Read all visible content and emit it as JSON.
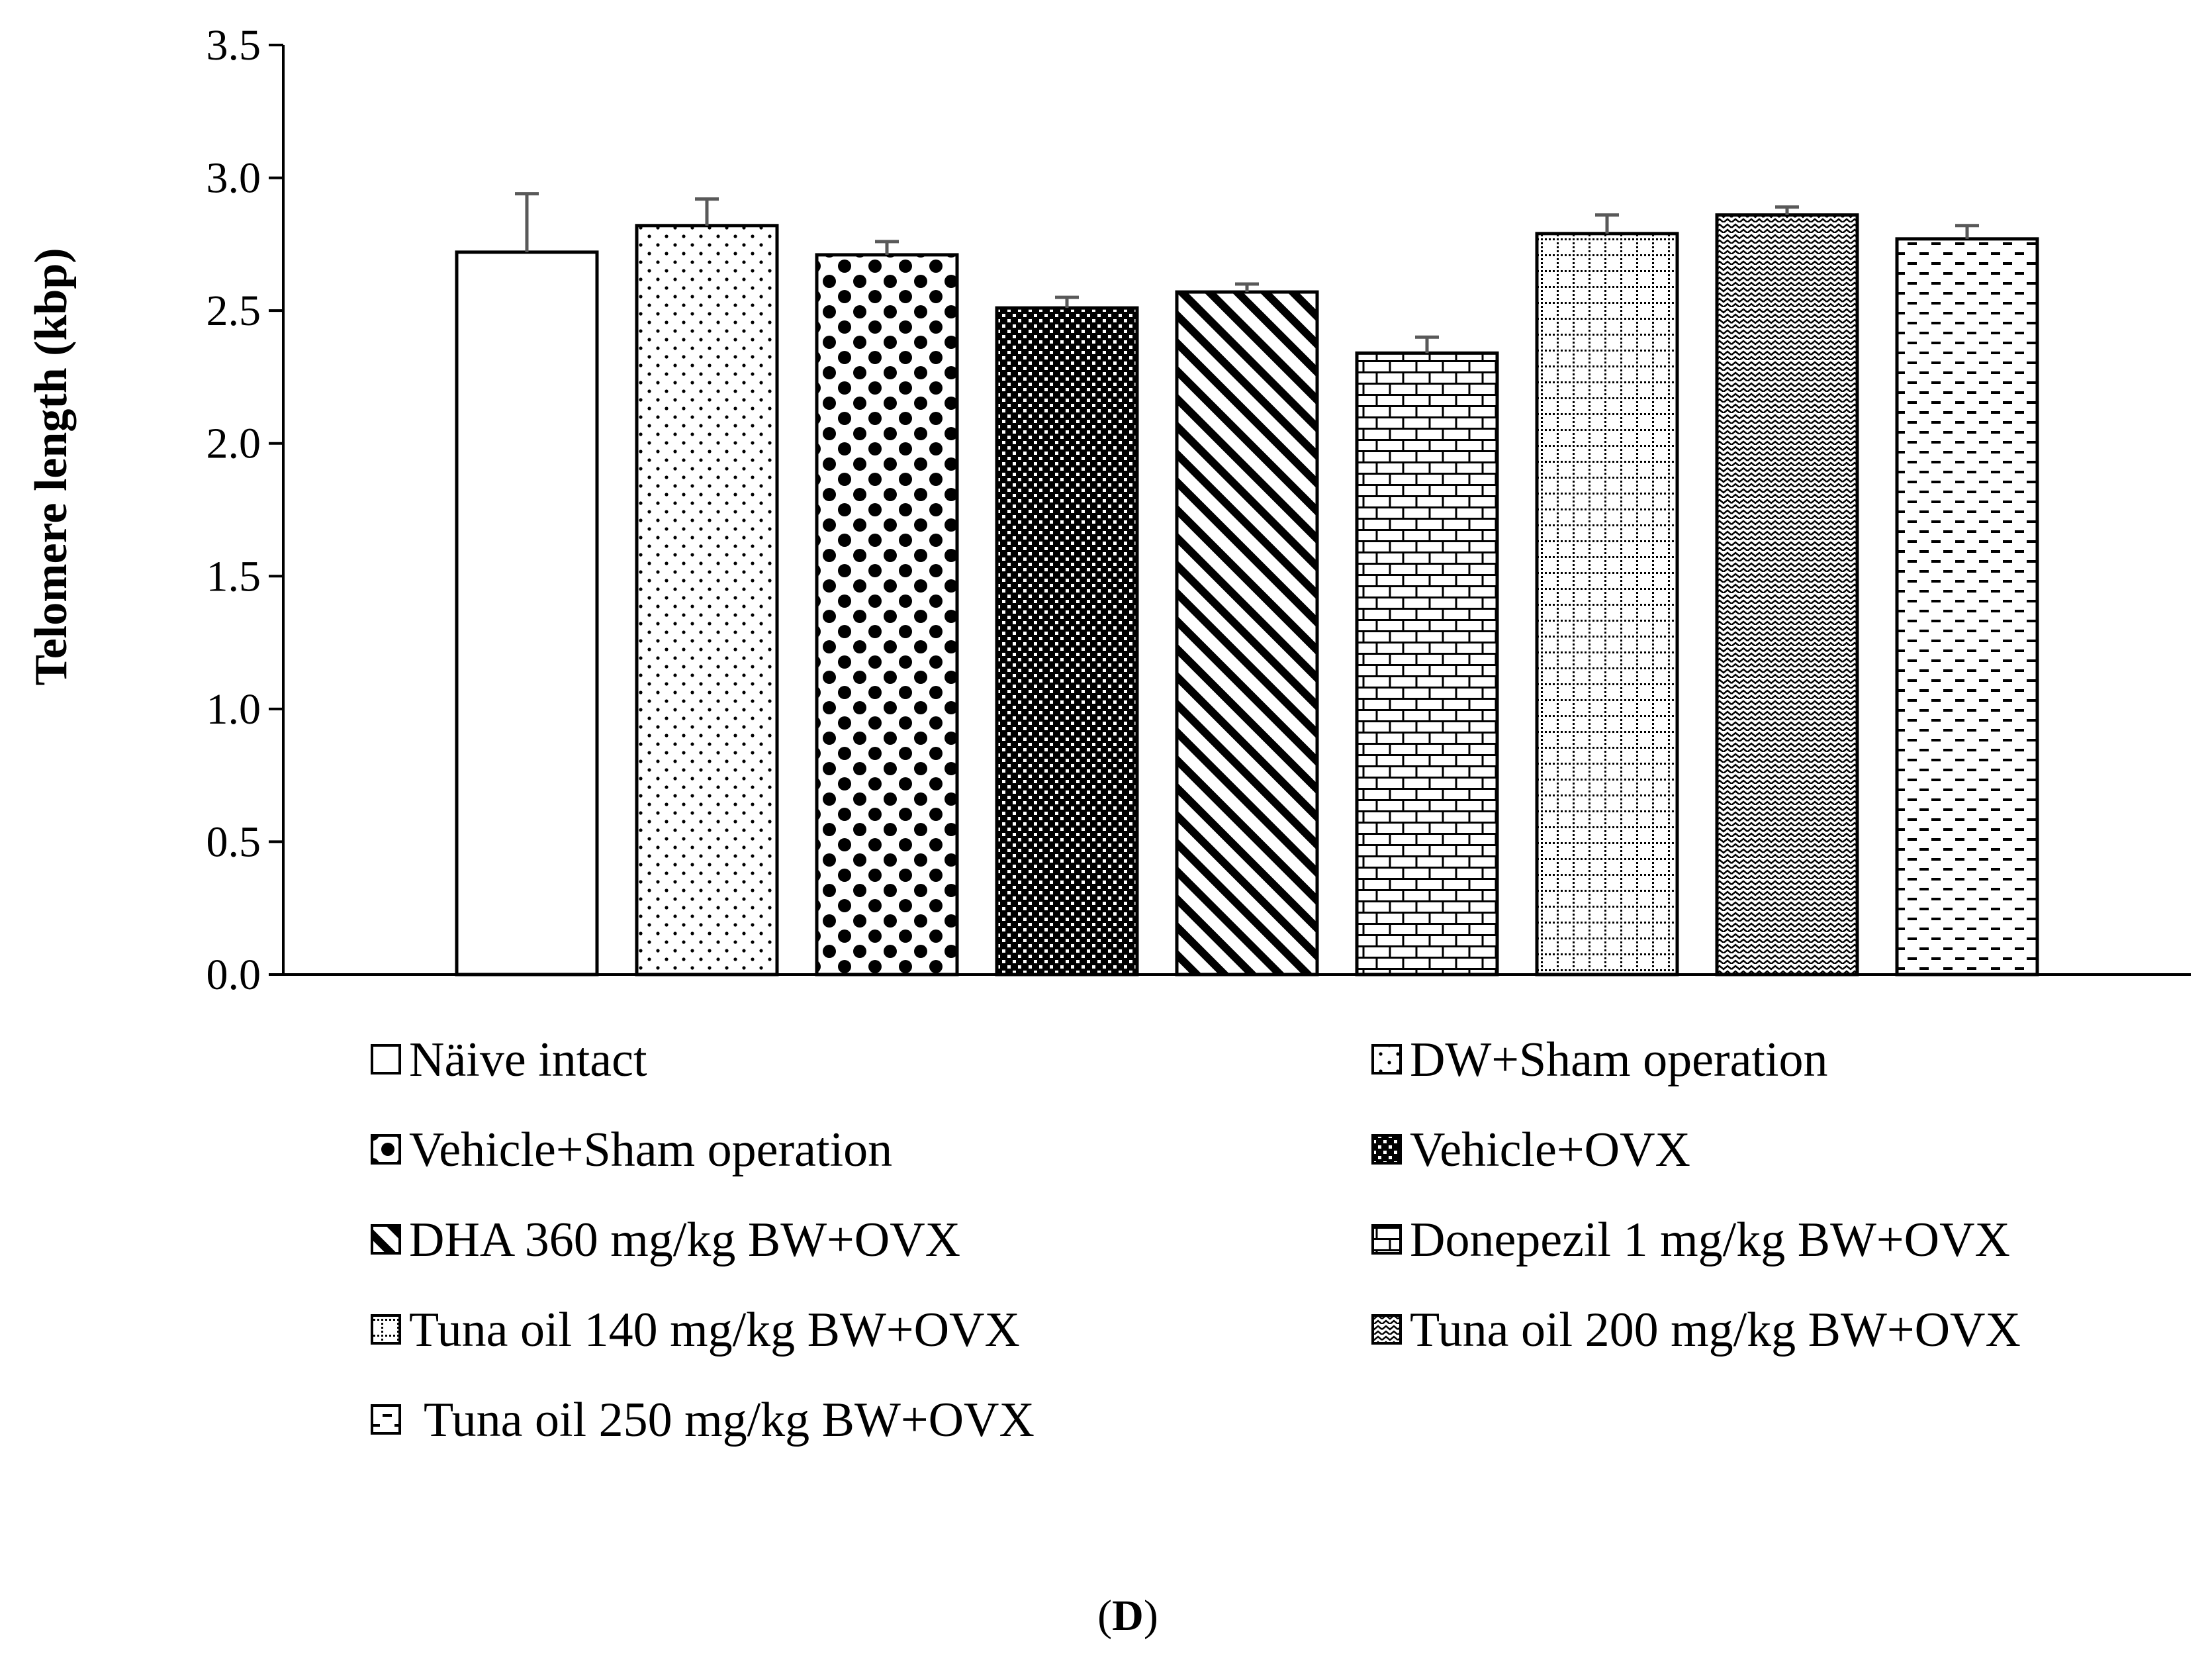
{
  "chart_data": {
    "type": "bar",
    "title": "",
    "xlabel": "",
    "ylabel": "Telomere length (kbp)",
    "ylim": [
      0,
      3.5
    ],
    "yticks": [
      "0.0",
      "0.5",
      "1.0",
      "1.5",
      "2.0",
      "2.5",
      "3.0",
      "3.5"
    ],
    "grid": false,
    "legend_position": "bottom",
    "categories": [
      "Näive intact",
      "DW+Sham operation",
      "Vehicle+Sham operation",
      "Vehicle+OVX",
      "DHA 360 mg/kg BW+OVX",
      "Donepezil 1 mg/kg BW+OVX",
      "Tuna oil 140 mg/kg BW+OVX",
      "Tuna oil 200 mg/kg BW+OVX",
      "Tuna oil 250 mg/kg BW+OVX"
    ],
    "values": [
      2.72,
      2.82,
      2.71,
      2.51,
      2.57,
      2.34,
      2.79,
      2.86,
      2.77
    ],
    "errors": [
      0.22,
      0.1,
      0.05,
      0.04,
      0.03,
      0.06,
      0.07,
      0.03,
      0.05
    ],
    "patterns": [
      "pat-none",
      "pat-dots",
      "pat-diamonds",
      "pat-checker",
      "pat-diagonal",
      "pat-brick",
      "pat-grid",
      "pat-wave",
      "pat-dashes"
    ],
    "bar_stroke_color": "#000000",
    "error_bar_color": "#595959"
  },
  "panel_label": {
    "open": "(",
    "letter": "D",
    "close": ")"
  }
}
